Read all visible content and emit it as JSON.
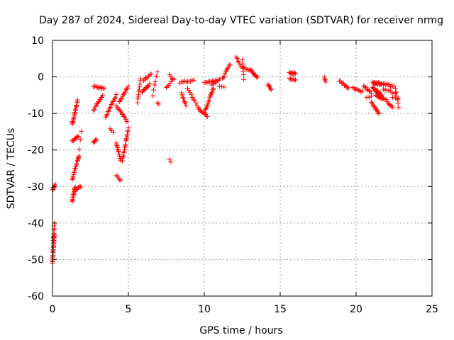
{
  "colors": {
    "series": "#ff0000",
    "grid": "#a0a0a0",
    "axis": "#000000"
  },
  "chart_data": {
    "type": "scatter",
    "title": "Day 287 of 2024, Sidereal Day-to-day VTEC variation (SDTVAR) for receiver nrmg",
    "xlabel": "GPS time / hours",
    "ylabel": "SDTVAR / TECUs",
    "xlim": [
      0,
      25
    ],
    "ylim": [
      -60,
      10
    ],
    "xticks": [
      0,
      5,
      10,
      15,
      20,
      25
    ],
    "yticks": [
      -60,
      -50,
      -40,
      -30,
      -20,
      -10,
      0,
      10
    ],
    "grid": true,
    "marker": "plus",
    "series": [
      {
        "name": "SDTVAR",
        "segments": [
          {
            "x0": 0.0,
            "y0": -51,
            "x1": 0.12,
            "y1": -43,
            "n": 22
          },
          {
            "x0": 0.05,
            "y0": -45,
            "x1": 0.14,
            "y1": -40,
            "n": 8
          },
          {
            "x0": 0.0,
            "y0": -31,
            "x1": 0.18,
            "y1": -29.5,
            "n": 10
          },
          {
            "x0": 1.3,
            "y0": -34,
            "x1": 1.5,
            "y1": -30,
            "n": 14
          },
          {
            "x0": 1.3,
            "y0": -28,
            "x1": 1.75,
            "y1": -21.5,
            "n": 16
          },
          {
            "x0": 1.3,
            "y0": -17.5,
            "x1": 1.7,
            "y1": -16.5,
            "n": 8
          },
          {
            "x0": 1.3,
            "y0": -13,
            "x1": 1.65,
            "y1": -6.5,
            "n": 20
          },
          {
            "x0": 1.5,
            "y0": -31,
            "x1": 1.85,
            "y1": -30,
            "n": 6
          },
          {
            "x0": 1.7,
            "y0": -22,
            "x1": 1.9,
            "y1": -15,
            "n": 4
          },
          {
            "x0": 2.7,
            "y0": -18,
            "x1": 2.9,
            "y1": -17,
            "n": 6
          },
          {
            "x0": 2.7,
            "y0": -9,
            "x1": 3.3,
            "y1": -5,
            "n": 12
          },
          {
            "x0": 2.7,
            "y0": -2.5,
            "x1": 3.4,
            "y1": -3,
            "n": 10
          },
          {
            "x0": 3.5,
            "y0": -11,
            "x1": 4.2,
            "y1": -5,
            "n": 14
          },
          {
            "x0": 3.8,
            "y0": -14,
            "x1": 4.0,
            "y1": -15,
            "n": 3
          },
          {
            "x0": 4.2,
            "y0": -18,
            "x1": 4.5,
            "y1": -23,
            "n": 12
          },
          {
            "x0": 4.2,
            "y0": -27,
            "x1": 4.5,
            "y1": -28.5,
            "n": 5
          },
          {
            "x0": 4.2,
            "y0": -8,
            "x1": 4.9,
            "y1": -12,
            "n": 12
          },
          {
            "x0": 4.4,
            "y0": -7,
            "x1": 5.0,
            "y1": -2.5,
            "n": 12
          },
          {
            "x0": 4.6,
            "y0": -23,
            "x1": 5.0,
            "y1": -14,
            "n": 18
          },
          {
            "x0": 5.6,
            "y0": -7,
            "x1": 5.8,
            "y1": -0.5,
            "n": 10
          },
          {
            "x0": 5.9,
            "y0": -4,
            "x1": 6.4,
            "y1": -2,
            "n": 10
          },
          {
            "x0": 6.0,
            "y0": -1,
            "x1": 6.5,
            "y1": 1,
            "n": 8
          },
          {
            "x0": 6.6,
            "y0": -5,
            "x1": 6.9,
            "y1": 1.5,
            "n": 6
          },
          {
            "x0": 6.9,
            "y0": -7,
            "x1": 7.0,
            "y1": -7.3,
            "n": 2
          },
          {
            "x0": 7.5,
            "y0": -3,
            "x1": 7.9,
            "y1": -1,
            "n": 6
          },
          {
            "x0": 7.7,
            "y0": -22.5,
            "x1": 7.8,
            "y1": -23.5,
            "n": 2
          },
          {
            "x0": 7.7,
            "y0": 0.5,
            "x1": 8.0,
            "y1": -0.5,
            "n": 4
          },
          {
            "x0": 8.4,
            "y0": -1.5,
            "x1": 9.3,
            "y1": -1,
            "n": 10
          },
          {
            "x0": 8.5,
            "y0": -4.5,
            "x1": 8.8,
            "y1": -8,
            "n": 8
          },
          {
            "x0": 8.9,
            "y0": -3,
            "x1": 9.6,
            "y1": -8.5,
            "n": 10
          },
          {
            "x0": 9.6,
            "y0": -8.5,
            "x1": 10.2,
            "y1": -11,
            "n": 10
          },
          {
            "x0": 10.0,
            "y0": -10,
            "x1": 10.6,
            "y1": -3,
            "n": 16
          },
          {
            "x0": 10.0,
            "y0": -1.5,
            "x1": 10.8,
            "y1": -1,
            "n": 10
          },
          {
            "x0": 10.5,
            "y0": -2,
            "x1": 11.0,
            "y1": -0.5,
            "n": 8
          },
          {
            "x0": 11.0,
            "y0": -2.5,
            "x1": 11.3,
            "y1": -3,
            "n": 3
          },
          {
            "x0": 11.2,
            "y0": -0.5,
            "x1": 11.7,
            "y1": 3.5,
            "n": 10
          },
          {
            "x0": 12.1,
            "y0": 5.5,
            "x1": 12.4,
            "y1": 3,
            "n": 6
          },
          {
            "x0": 12.5,
            "y0": 4.5,
            "x1": 12.6,
            "y1": -0.5,
            "n": 6
          },
          {
            "x0": 12.5,
            "y0": 3,
            "x1": 12.9,
            "y1": 2,
            "n": 5
          },
          {
            "x0": 13.0,
            "y0": 2,
            "x1": 13.5,
            "y1": 0,
            "n": 12
          },
          {
            "x0": 14.2,
            "y0": -2,
            "x1": 14.4,
            "y1": -3.5,
            "n": 6
          },
          {
            "x0": 15.6,
            "y0": 1,
            "x1": 16.0,
            "y1": 1,
            "n": 8
          },
          {
            "x0": 15.6,
            "y0": -0.5,
            "x1": 16.0,
            "y1": -0.8,
            "n": 6
          },
          {
            "x0": 17.9,
            "y0": 0,
            "x1": 18.0,
            "y1": -1.5,
            "n": 4
          },
          {
            "x0": 18.9,
            "y0": -1,
            "x1": 19.5,
            "y1": -3,
            "n": 10
          },
          {
            "x0": 19.8,
            "y0": -3,
            "x1": 20.4,
            "y1": -4,
            "n": 8
          },
          {
            "x0": 20.5,
            "y0": -2.5,
            "x1": 21.0,
            "y1": -4.5,
            "n": 8
          },
          {
            "x0": 20.7,
            "y0": -5.5,
            "x1": 21.0,
            "y1": -5.5,
            "n": 3
          },
          {
            "x0": 21.0,
            "y0": -7,
            "x1": 21.5,
            "y1": -10,
            "n": 10
          },
          {
            "x0": 21.1,
            "y0": -1.5,
            "x1": 21.7,
            "y1": -2,
            "n": 14
          },
          {
            "x0": 21.1,
            "y0": -3,
            "x1": 21.7,
            "y1": -5,
            "n": 18
          },
          {
            "x0": 21.3,
            "y0": -5,
            "x1": 21.8,
            "y1": -6,
            "n": 10
          },
          {
            "x0": 21.8,
            "y0": -2,
            "x1": 22.5,
            "y1": -2.5,
            "n": 10
          },
          {
            "x0": 21.8,
            "y0": -3.5,
            "x1": 22.6,
            "y1": -4.5,
            "n": 8
          },
          {
            "x0": 21.9,
            "y0": -6,
            "x1": 22.4,
            "y1": -8.5,
            "n": 8
          },
          {
            "x0": 22.6,
            "y0": -3,
            "x1": 22.8,
            "y1": -8.5,
            "n": 6
          },
          {
            "x0": 22.4,
            "y0": -5.5,
            "x1": 22.8,
            "y1": -6,
            "n": 3
          }
        ]
      }
    ]
  }
}
